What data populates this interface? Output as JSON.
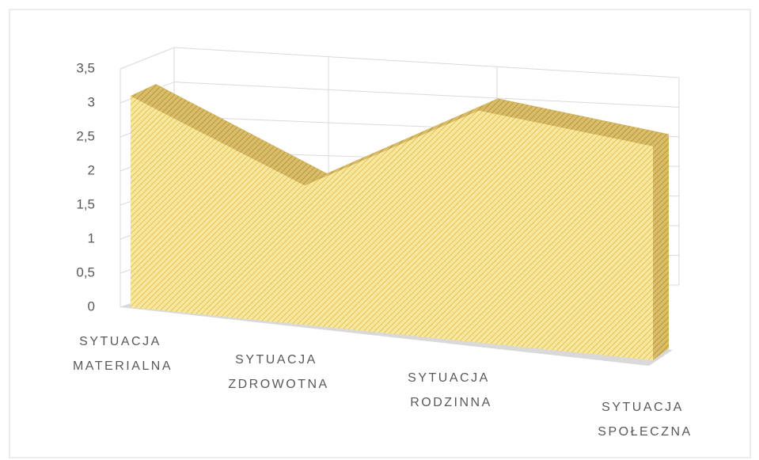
{
  "chart_data": {
    "type": "area3d",
    "categories": [
      "SYTUACJA MATERIALNA",
      "SYTUACJA ZDROWOTNA",
      "SYTUACJA RODZINNA",
      "SYTUACJA SPOŁECZNA"
    ],
    "values": [
      3.1,
      1.9,
      2.95,
      2.55
    ],
    "color": "#f3dc7e",
    "ylim": [
      0,
      3.5
    ],
    "yticks": [
      0,
      {
        "value": 0.5,
        "label": "0,5"
      },
      1,
      {
        "value": 1.5,
        "label": "1,5"
      },
      2,
      {
        "value": 2.5,
        "label": "2,5"
      },
      3,
      {
        "value": 3.5,
        "label": "3,5"
      }
    ],
    "grid": true
  }
}
